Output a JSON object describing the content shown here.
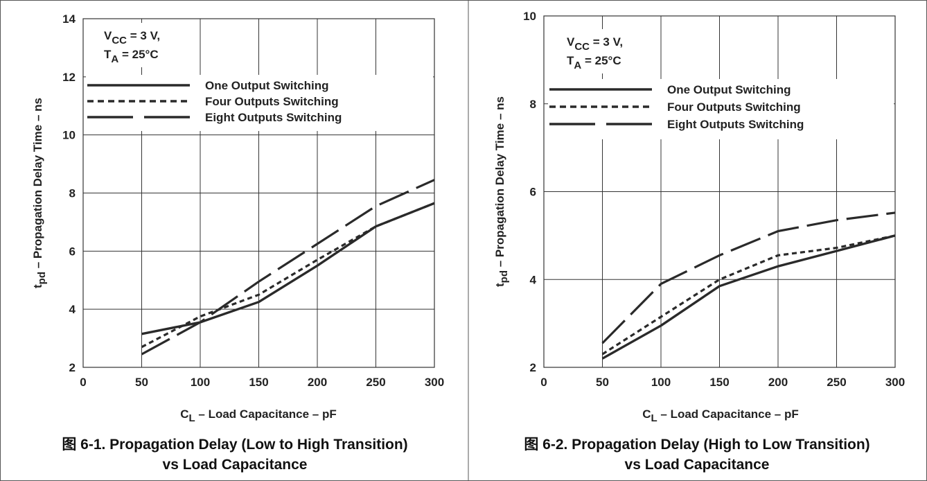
{
  "chart_data": [
    {
      "type": "line",
      "caption_line1": "图 6-1. Propagation Delay (Low to High Transition)",
      "caption_line2": "vs Load Capacitance",
      "xlabel_main": "C",
      "xlabel_sub": "L",
      "xlabel_rest": " – Load Capacitance – pF",
      "ylabel_main": "t",
      "ylabel_sub": "pd",
      "ylabel_rest": " – Propagation Delay Time – ns",
      "conditions": {
        "vcc_main": "V",
        "vcc_sub": "CC",
        "vcc_rest": " = 3 V,",
        "ta_main": "T",
        "ta_sub": "A",
        "ta_rest": " = 25°C"
      },
      "xlim": [
        0,
        300
      ],
      "ylim": [
        2,
        14
      ],
      "xticks": [
        0,
        50,
        100,
        150,
        200,
        250,
        300
      ],
      "yticks": [
        2,
        4,
        6,
        8,
        10,
        12,
        14
      ],
      "grid": true,
      "legend_position": "top-right",
      "series": [
        {
          "name": "One Output Switching",
          "style": "solid",
          "x": [
            50,
            100,
            150,
            200,
            250,
            300
          ],
          "y": [
            3.15,
            3.55,
            4.25,
            5.5,
            6.85,
            7.65
          ]
        },
        {
          "name": "Four Outputs Switching",
          "style": "dotted",
          "x": [
            50,
            100,
            150,
            200,
            250,
            300
          ],
          "y": [
            2.7,
            3.75,
            4.5,
            5.7,
            6.85,
            7.65
          ]
        },
        {
          "name": "Eight Outputs Switching",
          "style": "longdash",
          "x": [
            50,
            100,
            150,
            200,
            250,
            300
          ],
          "y": [
            2.45,
            3.55,
            4.95,
            6.25,
            7.55,
            8.45
          ]
        }
      ]
    },
    {
      "type": "line",
      "caption_line1": "图 6-2. Propagation Delay (High to Low Transition)",
      "caption_line2": "vs Load Capacitance",
      "xlabel_main": "C",
      "xlabel_sub": "L",
      "xlabel_rest": " – Load Capacitance – pF",
      "ylabel_main": "t",
      "ylabel_sub": "pd",
      "ylabel_rest": " – Propagation Delay Time – ns",
      "conditions": {
        "vcc_main": "V",
        "vcc_sub": "CC",
        "vcc_rest": " = 3 V,",
        "ta_main": "T",
        "ta_sub": "A",
        "ta_rest": " = 25°C"
      },
      "xlim": [
        0,
        300
      ],
      "ylim": [
        2,
        10
      ],
      "xticks": [
        0,
        50,
        100,
        150,
        200,
        250,
        300
      ],
      "yticks": [
        2,
        4,
        6,
        8,
        10
      ],
      "grid": true,
      "legend_position": "top-right",
      "series": [
        {
          "name": "One Output Switching",
          "style": "solid",
          "x": [
            50,
            100,
            150,
            200,
            250,
            300
          ],
          "y": [
            2.2,
            2.95,
            3.85,
            4.3,
            4.65,
            5.0
          ]
        },
        {
          "name": "Four Outputs Switching",
          "style": "dotted",
          "x": [
            50,
            100,
            150,
            200,
            250,
            300
          ],
          "y": [
            2.3,
            3.15,
            4.0,
            4.55,
            4.72,
            5.0
          ]
        },
        {
          "name": "Eight Outputs Switching",
          "style": "longdash",
          "x": [
            50,
            100,
            150,
            200,
            250,
            300
          ],
          "y": [
            2.55,
            3.9,
            4.55,
            5.1,
            5.35,
            5.52
          ]
        }
      ]
    }
  ]
}
